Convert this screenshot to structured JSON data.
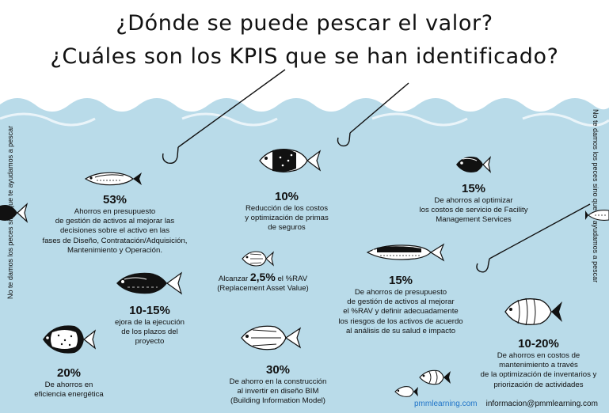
{
  "title": {
    "line1": "¿Dónde se puede pescar el valor?",
    "line2": "¿Cuáles son los KPIS que se han identificado?"
  },
  "side_text": {
    "left": "No te damos los peces sino que te ayudamos a pescar",
    "right": "No te damos los peces sino que te ayudamos a pescar"
  },
  "kpis": [
    {
      "value": "53%",
      "text": [
        "Ahorros en presupuesto",
        "de gestión de activos al mejorar las",
        "decisiones sobre el activo en las",
        "fases de Diseño, Contratación/Adquisición,",
        "Mantenimiento y Operación."
      ]
    },
    {
      "value": "10%",
      "text": [
        "Reducción de los costos",
        "y optimización de primas",
        "de seguros"
      ]
    },
    {
      "value": "15%",
      "text": [
        "De ahorros al optimizar",
        "los costos de servicio de Facility",
        "Management Services"
      ]
    },
    {
      "value": "2,5%",
      "prefix": "Alcanzar",
      "suffix": "el %RAV",
      "text": [
        "(Replacement Asset Value)"
      ]
    },
    {
      "value": "10-15%",
      "text": [
        "ejora de la ejecución",
        "de los plazos del",
        "proyecto"
      ]
    },
    {
      "value": "15%",
      "text": [
        "De ahorros de presupuesto",
        "de gestión de activos al mejorar",
        "el %RAV y definir adecuadamente",
        "los riesgos de los activos de acuerdo",
        "al análisis de su salud e impacto"
      ]
    },
    {
      "value": "20%",
      "text": [
        "De ahorros en",
        "eficiencia energética"
      ]
    },
    {
      "value": "30%",
      "text": [
        "De ahorro en la construcción",
        "al invertir en diseño BIM",
        "(Building Information Model)"
      ]
    },
    {
      "value": "10-20%",
      "text": [
        "De ahorros en costos de",
        "mantenimiento a través",
        "de la optimización de inventarios y",
        "priorización de actividades"
      ]
    }
  ],
  "footer": {
    "website": "pmmlearning.com",
    "email": "informacion@pmmlearning.com"
  },
  "colors": {
    "water": "#b9dbe9",
    "ink": "#111111",
    "link": "#1e73c8"
  }
}
